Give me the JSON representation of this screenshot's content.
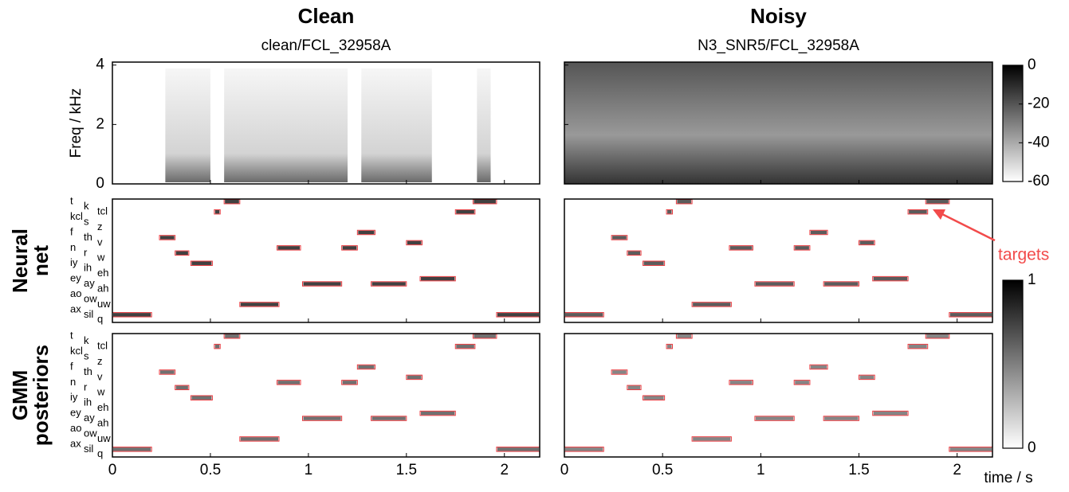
{
  "chart_data": {
    "type": "posteriorgram",
    "columns": [
      {
        "title": "Clean",
        "subtitle": "clean/FCL_32958A"
      },
      {
        "title": "Noisy",
        "subtitle": "N3_SNR5/FCL_32958A"
      }
    ],
    "rows": [
      {
        "label": [
          "Neural",
          "net"
        ]
      },
      {
        "label": [
          "GMM",
          "posteriors"
        ]
      }
    ],
    "spectrogram": {
      "ylabel": "Freq / kHz",
      "ylim": [
        0,
        4.1
      ],
      "yticks": [
        0,
        2,
        4
      ]
    },
    "colorbar_db": {
      "lim": [
        -60,
        0
      ],
      "ticks": [
        0,
        -20,
        -40,
        -60
      ]
    },
    "colorbar_posterior": {
      "lim": [
        0,
        1
      ],
      "ticks": [
        1,
        0
      ]
    },
    "phones": [
      "t",
      "k",
      "tcl",
      "kcl",
      "s",
      "z",
      "f",
      "th",
      "v",
      "n",
      "r",
      "w",
      "iy",
      "ih",
      "eh",
      "ey",
      "ay",
      "ah",
      "ao",
      "ow",
      "uw",
      "ax",
      "sil",
      "q"
    ],
    "xlim": [
      0,
      2.18
    ],
    "xticks": [
      0,
      0.5,
      1,
      1.5,
      2
    ],
    "xlabel": "time / s",
    "targets": {
      "start": [
        0,
        0.24,
        0.32,
        0.4,
        0.52,
        0.57,
        0.65,
        0.84,
        0.97,
        1.17,
        1.25,
        1.32,
        1.5,
        1.57,
        1.75,
        1.84,
        1.96
      ],
      "end": [
        0.2,
        0.32,
        0.39,
        0.51,
        0.55,
        0.65,
        0.85,
        0.96,
        1.17,
        1.25,
        1.34,
        1.5,
        1.58,
        1.75,
        1.85,
        1.96,
        2.18
      ],
      "phone": [
        22,
        7,
        10,
        12,
        2,
        0,
        20,
        9,
        16,
        9,
        6,
        16,
        8,
        15,
        2,
        0,
        22
      ],
      "color": "#e8383d"
    },
    "annotation": "targets",
    "annotation_color": "#f24b4b"
  }
}
